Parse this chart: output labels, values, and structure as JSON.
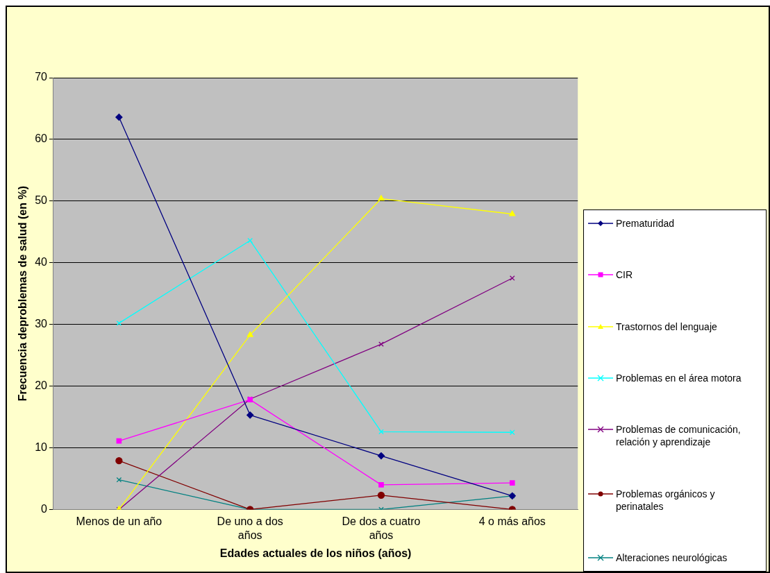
{
  "chart_data": {
    "type": "line",
    "xlabel": "Edades actuales de los niños (años)",
    "ylabel": "Frecuencia deproblemas de salud (en %)",
    "categories": [
      "Menos de un año",
      "De uno a dos años",
      "De dos a cuatro años",
      "4 o más años"
    ],
    "ylim": [
      0,
      70
    ],
    "yticks": [
      0,
      10,
      20,
      30,
      40,
      50,
      60,
      70
    ],
    "grid": "y",
    "legend": "right",
    "series": [
      {
        "name": "Prematuridad",
        "color": "#000080",
        "marker": "diamond",
        "values": [
          63.6,
          15.3,
          8.7,
          2.2
        ]
      },
      {
        "name": "CIR",
        "color": "#ff00ff",
        "marker": "square",
        "values": [
          11.1,
          17.8,
          4.0,
          4.3
        ]
      },
      {
        "name": "Trastornos del lenguaje",
        "color": "#ffff00",
        "marker": "triangle",
        "values": [
          0,
          28.3,
          50.4,
          47.9
        ]
      },
      {
        "name": "Problemas en el área motora",
        "color": "#00ffff",
        "marker": "cross",
        "values": [
          30.2,
          43.6,
          12.6,
          12.5
        ]
      },
      {
        "name": "Problemas de comunicación, relación y aprendizaje",
        "color": "#800080",
        "marker": "cross",
        "values": [
          0,
          17.9,
          26.8,
          37.5
        ]
      },
      {
        "name": "Problemas orgánicos y perinatales",
        "color": "#800000",
        "marker": "circle",
        "values": [
          7.9,
          0,
          2.3,
          0
        ]
      },
      {
        "name": "Alteraciones neurológicas",
        "color": "#008080",
        "marker": "cross",
        "values": [
          4.8,
          0,
          0,
          2.2
        ]
      }
    ]
  }
}
